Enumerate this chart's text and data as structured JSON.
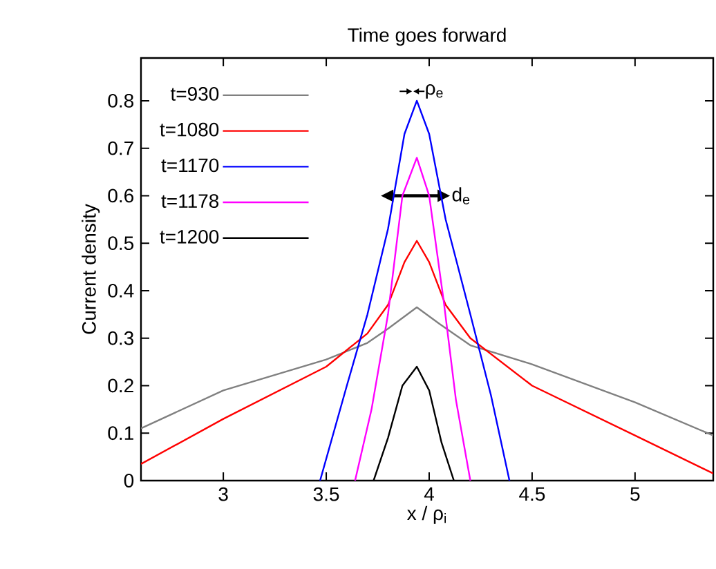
{
  "chart_data": {
    "type": "line",
    "title": "Time goes forward",
    "xlabel": "x / ρ$_{i}$",
    "ylabel": "Current density",
    "xlim": [
      2.6,
      5.38
    ],
    "ylim": [
      0,
      0.89
    ],
    "xticks": [
      3,
      3.5,
      4,
      4.5,
      5
    ],
    "yticks": [
      0,
      0.1,
      0.2,
      0.3,
      0.4,
      0.5,
      0.6,
      0.7,
      0.8
    ],
    "grid": false,
    "legend": "top left",
    "marker": "none",
    "line_style": "solid",
    "series": [
      {
        "name": "t=930",
        "color": "#808080",
        "x": [
          2.6,
          3.0,
          3.5,
          3.7,
          3.8,
          3.94,
          4.05,
          4.2,
          4.5,
          5.0,
          5.38
        ],
        "values": [
          0.11,
          0.19,
          0.255,
          0.29,
          0.32,
          0.365,
          0.33,
          0.285,
          0.245,
          0.165,
          0.095
        ]
      },
      {
        "name": "t=1080",
        "color": "#ff0000",
        "x": [
          2.6,
          3.0,
          3.5,
          3.7,
          3.8,
          3.88,
          3.94,
          4.0,
          4.08,
          4.2,
          4.5,
          5.0,
          5.38
        ],
        "values": [
          0.035,
          0.13,
          0.24,
          0.31,
          0.37,
          0.46,
          0.505,
          0.46,
          0.37,
          0.3,
          0.2,
          0.095,
          0.015
        ]
      },
      {
        "name": "t=1170",
        "color": "#0000ff",
        "x": [
          3.47,
          3.6,
          3.7,
          3.8,
          3.88,
          3.94,
          4.0,
          4.08,
          4.2,
          4.3,
          4.39
        ],
        "values": [
          0,
          0.2,
          0.35,
          0.53,
          0.73,
          0.8,
          0.73,
          0.55,
          0.35,
          0.18,
          0
        ]
      },
      {
        "name": "t=1178",
        "color": "#ff00ff",
        "x": [
          3.64,
          3.72,
          3.8,
          3.87,
          3.94,
          4.0,
          4.07,
          4.13,
          4.2
        ],
        "values": [
          0,
          0.15,
          0.35,
          0.6,
          0.68,
          0.6,
          0.38,
          0.17,
          0
        ]
      },
      {
        "name": "t=1200",
        "color": "#000000",
        "x": [
          3.73,
          3.8,
          3.87,
          3.94,
          4.0,
          4.06,
          4.12
        ],
        "values": [
          0,
          0.09,
          0.2,
          0.24,
          0.19,
          0.08,
          0
        ]
      }
    ],
    "annotations": [
      "ρ$_{e}$",
      "d$_{e}$"
    ]
  }
}
